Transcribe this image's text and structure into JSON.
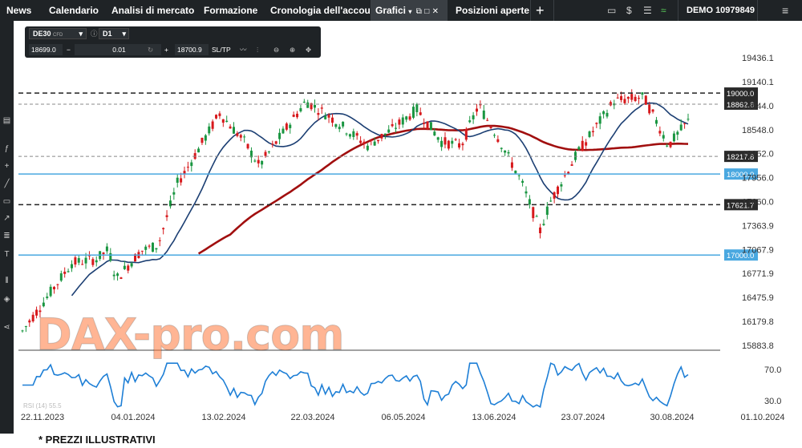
{
  "topbar": {
    "tabs": [
      {
        "label": "News"
      },
      {
        "label": "Calendario"
      },
      {
        "label": "Analisi di mercato"
      },
      {
        "label": "Formazione"
      },
      {
        "label": "Cronologia dell'account"
      },
      {
        "label": "Grafici"
      },
      {
        "label": "Posizioni aperte"
      }
    ],
    "add_tab": "+",
    "account_mode": "DEMO",
    "account_number": "10979849"
  },
  "instrument": {
    "symbol": "DE30",
    "type": "CFD",
    "timeframe": "D1",
    "sell_price": "18699.0",
    "quantity": "0.01",
    "buy_price": "18700.9",
    "sltp_label": "SL/TP"
  },
  "price_axis": [
    "19436.1",
    "19140.1",
    "18844.0",
    "18548.0",
    "18252.0",
    "17956.0",
    "17660.0",
    "17363.9",
    "17067.9",
    "16771.9",
    "16475.9",
    "16179.8",
    "15883.8"
  ],
  "levels": [
    {
      "value": "19000.0",
      "style": "dashed-black"
    },
    {
      "value": "18862.6",
      "style": "dashed-gray"
    },
    {
      "value": "18217.8",
      "style": "dashed-gray"
    },
    {
      "value": "18000.0",
      "style": "solid-blue"
    },
    {
      "value": "17621.7",
      "style": "dashed-black"
    },
    {
      "value": "17000.0",
      "style": "solid-blue"
    }
  ],
  "rsi": {
    "label": "RSI (14) 55.5",
    "axis": [
      "70.0",
      "30.0"
    ]
  },
  "date_axis": [
    "22.11.2023",
    "04.01.2024",
    "13.02.2024",
    "22.03.2024",
    "06.05.2024",
    "13.06.2024",
    "23.07.2024",
    "30.08.2024",
    "01.10.2024"
  ],
  "watermark": "DAX-pro.com",
  "footer_note": "* PREZZI ILLUSTRATIVI",
  "colors": {
    "bull_candle": "#1a9641",
    "bear_candle": "#d7191c",
    "ma_short": "#1c3f73",
    "ma_long": "#a10f0f",
    "level_blue": "#4aa8e0",
    "rsi_line": "#1e7fd6",
    "dark_bg": "#1f2326"
  },
  "icons": [
    "calendar-icon",
    "dollar-icon",
    "list-icon",
    "wifi-icon",
    "menu-icon",
    "close-icon",
    "maximize-icon",
    "info-icon"
  ]
}
